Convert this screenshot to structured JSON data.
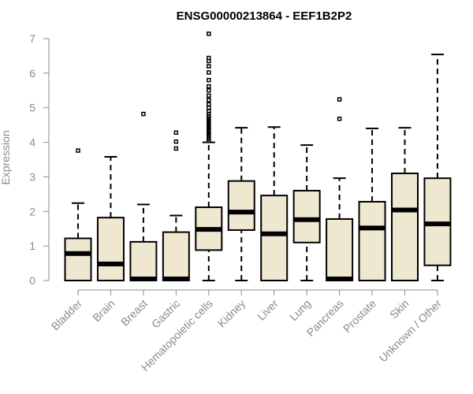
{
  "chart_data": {
    "type": "boxplot",
    "title": "ENSG00000213864 - EEF1B2P2",
    "xlabel": "",
    "ylabel": "Expression",
    "ylim": [
      0,
      7
    ],
    "yticks": [
      0,
      1,
      2,
      3,
      4,
      5,
      6,
      7
    ],
    "box_fill": "#efe8d0",
    "categories": [
      "Bladder",
      "Brain",
      "Breast",
      "Gastric",
      "Hematopoietic cells",
      "Kidney",
      "Liver",
      "Lung",
      "Pancreas",
      "Prostate",
      "Skin",
      "Unknown / Other"
    ],
    "boxes": [
      {
        "min": 0,
        "q1": 0,
        "median": 0.78,
        "q3": 1.22,
        "max": 2.24,
        "outliers": [
          3.76
        ]
      },
      {
        "min": 0,
        "q1": 0,
        "median": 0.48,
        "q3": 1.82,
        "max": 3.58,
        "outliers": []
      },
      {
        "min": 0,
        "q1": 0,
        "median": 0.02,
        "q3": 1.12,
        "max": 2.2,
        "outliers": [
          4.82
        ]
      },
      {
        "min": 0,
        "q1": 0,
        "median": 0.02,
        "q3": 1.4,
        "max": 1.88,
        "outliers": [
          3.82,
          4.02,
          4.28
        ]
      },
      {
        "min": 0,
        "q1": 0.88,
        "median": 1.48,
        "q3": 2.12,
        "max": 4.0,
        "outliers": [
          4.05,
          4.1,
          4.15,
          4.2,
          4.26,
          4.32,
          4.38,
          4.44,
          4.5,
          4.56,
          4.62,
          4.68,
          4.75,
          4.82,
          4.9,
          5.0,
          5.1,
          5.22,
          5.35,
          5.5,
          5.62,
          5.8,
          6.02,
          6.2,
          6.35,
          6.44,
          7.14
        ]
      },
      {
        "min": 0,
        "q1": 1.46,
        "median": 1.98,
        "q3": 2.88,
        "max": 4.42,
        "outliers": []
      },
      {
        "min": 0,
        "q1": 0,
        "median": 1.35,
        "q3": 2.46,
        "max": 4.44,
        "outliers": []
      },
      {
        "min": 0,
        "q1": 1.1,
        "median": 1.76,
        "q3": 2.6,
        "max": 3.92,
        "outliers": []
      },
      {
        "min": 0,
        "q1": 0,
        "median": 0.02,
        "q3": 1.78,
        "max": 2.96,
        "outliers": [
          4.68,
          5.24
        ]
      },
      {
        "min": 0,
        "q1": 0,
        "median": 1.52,
        "q3": 2.28,
        "max": 4.4,
        "outliers": []
      },
      {
        "min": 0,
        "q1": 0,
        "median": 2.04,
        "q3": 3.1,
        "max": 4.42,
        "outliers": []
      },
      {
        "min": 0,
        "q1": 0.44,
        "median": 1.64,
        "q3": 2.96,
        "max": 6.54,
        "outliers": []
      }
    ]
  }
}
